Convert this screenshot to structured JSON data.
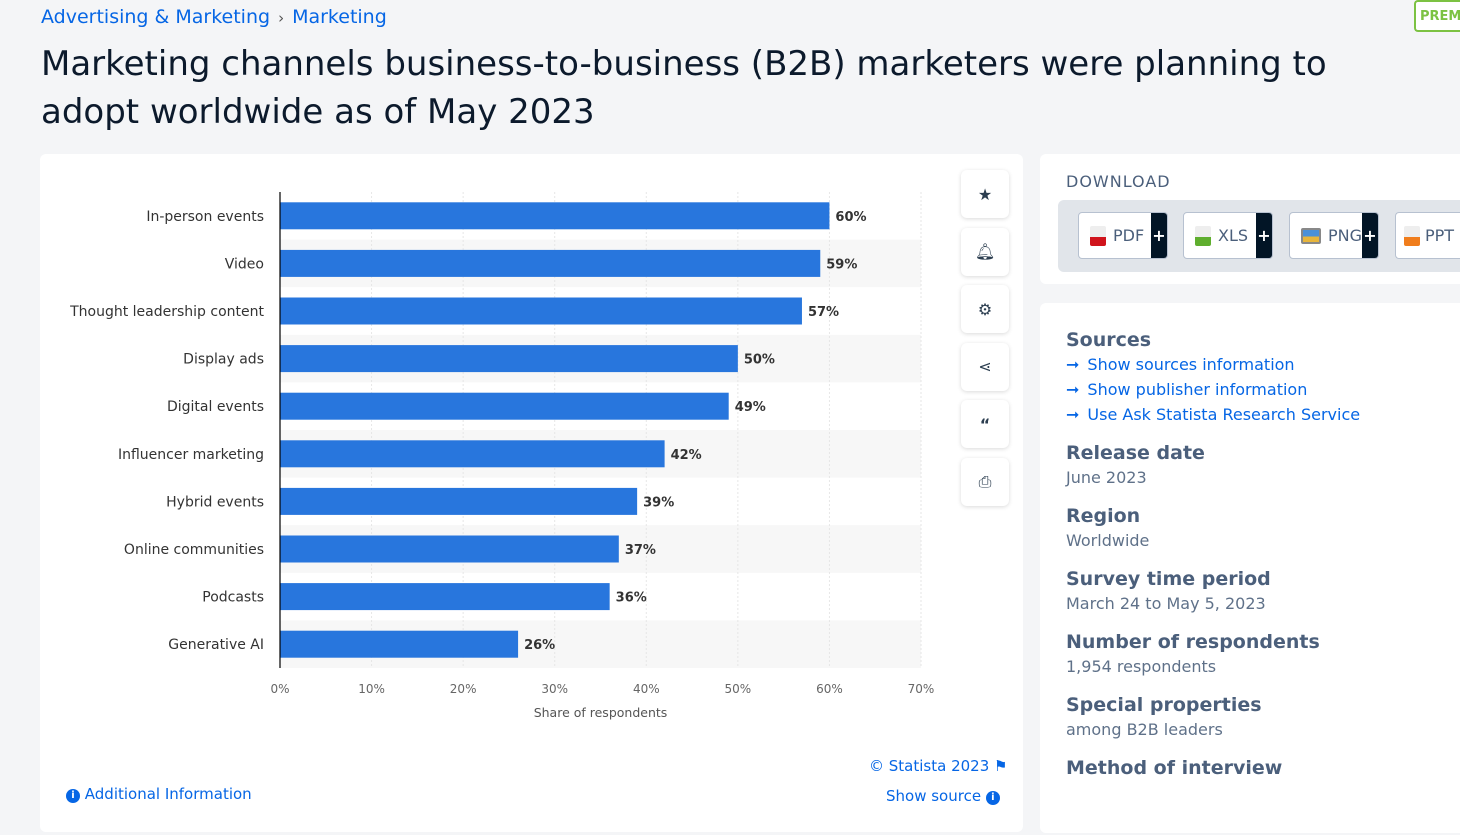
{
  "breadcrumb": [
    "Advertising & Marketing",
    "Marketing"
  ],
  "premium_badge": "PREM",
  "title": "Marketing channels business-to-business (B2B) marketers were planning to adopt worldwide as of May 2023",
  "chart_data": {
    "type": "bar",
    "orientation": "horizontal",
    "categories": [
      "In-person events",
      "Video",
      "Thought leadership content",
      "Display ads",
      "Digital events",
      "Influencer marketing",
      "Hybrid events",
      "Online communities",
      "Podcasts",
      "Generative AI"
    ],
    "values": [
      60,
      59,
      57,
      50,
      49,
      42,
      39,
      37,
      36,
      26
    ],
    "data_labels": [
      "60%",
      "59%",
      "57%",
      "50%",
      "49%",
      "42%",
      "39%",
      "37%",
      "36%",
      "26%"
    ],
    "xlabel": "Share of respondents",
    "ylabel": "",
    "xlim": [
      0,
      70
    ],
    "ticks": [
      "0%",
      "10%",
      "20%",
      "30%",
      "40%",
      "50%",
      "60%",
      "70%"
    ],
    "bar_color": "#2876dd",
    "grid": true
  },
  "tools": [
    "star-icon",
    "bell-icon",
    "gear-icon",
    "share-icon",
    "quote-icon",
    "print-icon"
  ],
  "footer": {
    "copyright": "© Statista 2023",
    "show_source": "Show source",
    "additional": "Additional Information"
  },
  "download": {
    "title": "DOWNLOAD",
    "buttons": [
      "PDF",
      "XLS",
      "PNG",
      "PPT"
    ]
  },
  "meta": {
    "sources_title": "Sources",
    "links": [
      "Show sources information",
      "Show publisher information",
      "Use Ask Statista Research Service"
    ],
    "items": [
      {
        "label": "Release date",
        "value": "June 2023"
      },
      {
        "label": "Region",
        "value": "Worldwide"
      },
      {
        "label": "Survey time period",
        "value": "March 24 to May 5, 2023"
      },
      {
        "label": "Number of respondents",
        "value": "1,954 respondents"
      },
      {
        "label": "Special properties",
        "value": "among B2B leaders"
      },
      {
        "label": "Method of interview",
        "value": ""
      }
    ]
  }
}
